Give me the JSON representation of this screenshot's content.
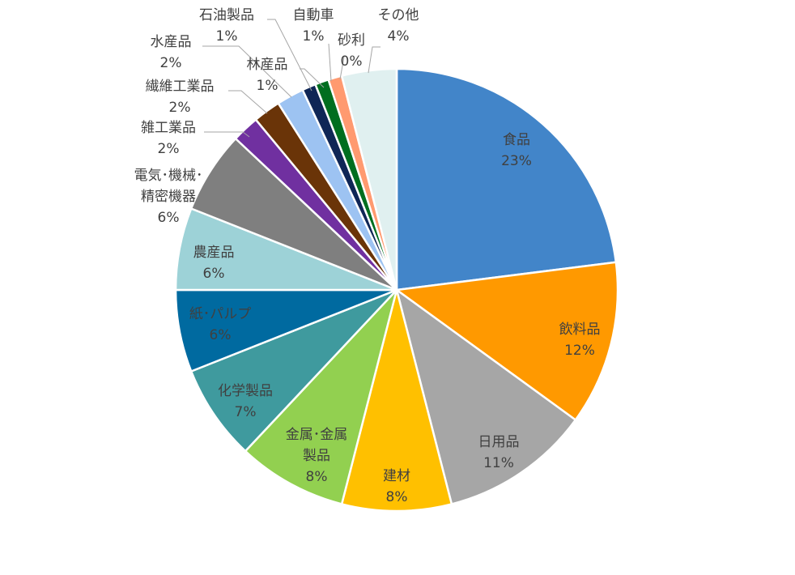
{
  "chart_data": {
    "type": "pie",
    "title": "",
    "slices": [
      {
        "name": "食品",
        "value": 23,
        "label": "23%",
        "color": "#4285c9"
      },
      {
        "name": "飲料品",
        "value": 12,
        "label": "12%",
        "color": "#ff9900"
      },
      {
        "name": "日用品",
        "value": 11,
        "label": "11%",
        "color": "#a6a6a6"
      },
      {
        "name": "建材",
        "value": 8,
        "label": "8%",
        "color": "#ffc000"
      },
      {
        "name": "金属･金属製品",
        "value": 8,
        "label": "8%",
        "color": "#92d050"
      },
      {
        "name": "化学製品",
        "value": 7,
        "label": "7%",
        "color": "#3f9a9e"
      },
      {
        "name": "紙･パルプ",
        "value": 6,
        "label": "6%",
        "color": "#006aa0"
      },
      {
        "name": "農産品",
        "value": 6,
        "label": "6%",
        "color": "#9dd2d7"
      },
      {
        "name": "電気･機械･精密機器",
        "value": 6,
        "label": "6%",
        "color": "#7f7f7f"
      },
      {
        "name": "雑工業品",
        "value": 2,
        "label": "2%",
        "color": "#7030a0"
      },
      {
        "name": "繊維工業品",
        "value": 2,
        "label": "2%",
        "color": "#6a3408"
      },
      {
        "name": "水産品",
        "value": 2,
        "label": "2%",
        "color": "#9dc3f2"
      },
      {
        "name": "石油製品",
        "value": 1,
        "label": "1%",
        "color": "#0f2656"
      },
      {
        "name": "林産品",
        "value": 1,
        "label": "1%",
        "color": "#006e1f"
      },
      {
        "name": "自動車",
        "value": 1,
        "label": "1%",
        "color": "#ff9a70"
      },
      {
        "name": "砂利",
        "value": 0,
        "label": "0%",
        "color": "#ffffff"
      },
      {
        "name": "その他",
        "value": 4,
        "label": "4%",
        "color": "#e0f0f0"
      }
    ]
  }
}
